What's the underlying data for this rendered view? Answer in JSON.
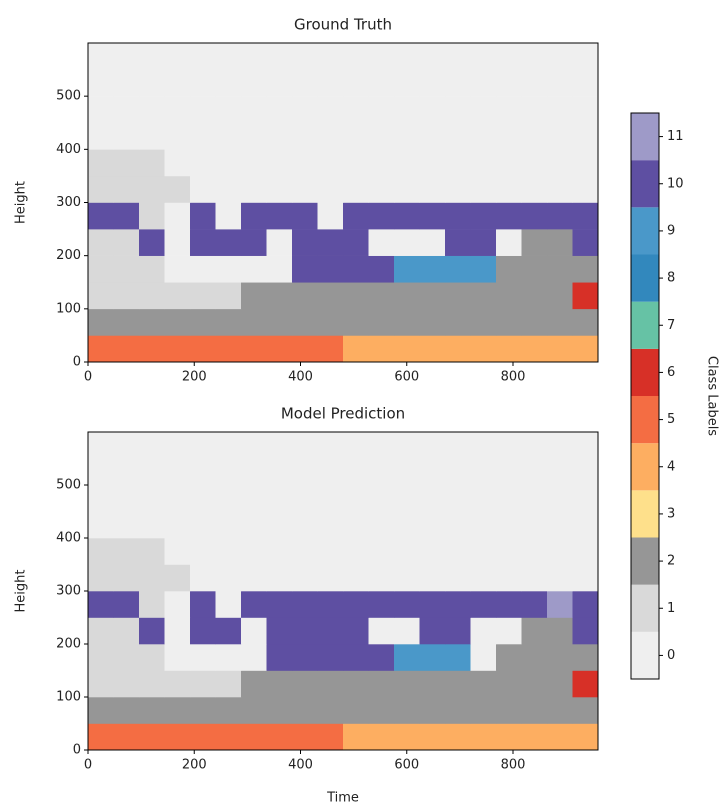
{
  "chart_data": [
    {
      "type": "heatmap",
      "title": "Ground Truth",
      "ylabel": "Height",
      "xlim": [
        0,
        960
      ],
      "ylim": [
        0,
        600
      ],
      "xticks": [
        0,
        200,
        400,
        600,
        800
      ],
      "yticks": [
        0,
        100,
        200,
        300,
        400,
        500
      ],
      "x_edges": [
        0,
        48,
        96,
        144,
        192,
        240,
        288,
        336,
        384,
        432,
        480,
        528,
        576,
        624,
        672,
        720,
        768,
        816,
        864,
        912,
        960
      ],
      "y_edges": [
        0,
        50,
        100,
        150,
        200,
        250,
        300,
        350,
        400,
        450,
        500,
        550,
        600
      ],
      "z": [
        [
          5,
          5,
          5,
          5,
          5,
          5,
          5,
          5,
          5,
          5,
          4,
          4,
          4,
          4,
          4,
          4,
          4,
          4,
          4,
          4
        ],
        [
          2,
          2,
          2,
          2,
          2,
          2,
          2,
          2,
          2,
          2,
          2,
          2,
          2,
          2,
          2,
          2,
          2,
          2,
          2,
          2
        ],
        [
          1,
          1,
          1,
          1,
          1,
          1,
          2,
          2,
          2,
          2,
          2,
          2,
          2,
          2,
          2,
          2,
          2,
          2,
          2,
          6
        ],
        [
          1,
          1,
          1,
          0,
          0,
          0,
          0,
          0,
          10,
          10,
          10,
          10,
          9,
          9,
          9,
          9,
          2,
          2,
          2,
          2
        ],
        [
          1,
          1,
          10,
          0,
          10,
          10,
          10,
          0,
          10,
          10,
          10,
          0,
          0,
          0,
          10,
          10,
          0,
          2,
          2,
          10
        ],
        [
          10,
          10,
          1,
          0,
          10,
          0,
          10,
          10,
          10,
          0,
          10,
          10,
          10,
          10,
          10,
          10,
          10,
          10,
          10,
          10
        ],
        [
          1,
          1,
          1,
          1,
          0,
          0,
          0,
          0,
          0,
          0,
          0,
          0,
          0,
          0,
          0,
          0,
          0,
          0,
          0,
          0
        ],
        [
          1,
          1,
          1,
          0,
          0,
          0,
          0,
          0,
          0,
          0,
          0,
          0,
          0,
          0,
          0,
          0,
          0,
          0,
          0,
          0
        ],
        [
          0,
          0,
          0,
          0,
          0,
          0,
          0,
          0,
          0,
          0,
          0,
          0,
          0,
          0,
          0,
          0,
          0,
          0,
          0,
          0
        ],
        [
          0,
          0,
          0,
          0,
          0,
          0,
          0,
          0,
          0,
          0,
          0,
          0,
          0,
          0,
          0,
          0,
          0,
          0,
          0,
          0
        ],
        [
          0,
          0,
          0,
          0,
          0,
          0,
          0,
          0,
          0,
          0,
          0,
          0,
          0,
          0,
          0,
          0,
          0,
          0,
          0,
          0
        ],
        [
          0,
          0,
          0,
          0,
          0,
          0,
          0,
          0,
          0,
          0,
          0,
          0,
          0,
          0,
          0,
          0,
          0,
          0,
          0,
          0
        ]
      ],
      "colorbar": {
        "label": "Class Labels",
        "classes": [
          0,
          1,
          2,
          3,
          4,
          5,
          6,
          7,
          8,
          9,
          10,
          11
        ],
        "ylim": [
          -0.5,
          11.5
        ],
        "colors": [
          "#efefef",
          "#d9d9d9",
          "#969696",
          "#fee08b",
          "#fdae61",
          "#f46d43",
          "#d73027",
          "#66c2a5",
          "#3288bd",
          "#4a98c9",
          "#5e4fa2",
          "#9e9ac8"
        ]
      }
    },
    {
      "type": "heatmap",
      "title": "Model Prediction",
      "ylabel": "Height",
      "xlabel": "Time",
      "xlim": [
        0,
        960
      ],
      "ylim": [
        0,
        600
      ],
      "xticks": [
        0,
        200,
        400,
        600,
        800
      ],
      "yticks": [
        0,
        100,
        200,
        300,
        400,
        500
      ],
      "x_edges": [
        0,
        48,
        96,
        144,
        192,
        240,
        288,
        336,
        384,
        432,
        480,
        528,
        576,
        624,
        672,
        720,
        768,
        816,
        864,
        912,
        960
      ],
      "y_edges": [
        0,
        50,
        100,
        150,
        200,
        250,
        300,
        350,
        400,
        450,
        500,
        550,
        600
      ],
      "z": [
        [
          5,
          5,
          5,
          5,
          5,
          5,
          5,
          5,
          5,
          5,
          4,
          4,
          4,
          4,
          4,
          4,
          4,
          4,
          4,
          4
        ],
        [
          2,
          2,
          2,
          2,
          2,
          2,
          2,
          2,
          2,
          2,
          2,
          2,
          2,
          2,
          2,
          2,
          2,
          2,
          2,
          2
        ],
        [
          1,
          1,
          1,
          1,
          1,
          1,
          2,
          2,
          2,
          2,
          2,
          2,
          2,
          2,
          2,
          2,
          2,
          2,
          2,
          6
        ],
        [
          1,
          1,
          1,
          0,
          0,
          0,
          0,
          10,
          10,
          10,
          10,
          10,
          9,
          9,
          9,
          0,
          2,
          2,
          2,
          2
        ],
        [
          1,
          1,
          10,
          0,
          10,
          10,
          0,
          10,
          10,
          10,
          10,
          0,
          0,
          10,
          10,
          0,
          0,
          2,
          2,
          10
        ],
        [
          10,
          10,
          1,
          0,
          10,
          0,
          10,
          10,
          10,
          10,
          10,
          10,
          10,
          10,
          10,
          10,
          10,
          10,
          11,
          10
        ],
        [
          1,
          1,
          1,
          1,
          0,
          0,
          0,
          0,
          0,
          0,
          0,
          0,
          0,
          0,
          0,
          0,
          0,
          0,
          0,
          0
        ],
        [
          1,
          1,
          1,
          0,
          0,
          0,
          0,
          0,
          0,
          0,
          0,
          0,
          0,
          0,
          0,
          0,
          0,
          0,
          0,
          0
        ],
        [
          0,
          0,
          0,
          0,
          0,
          0,
          0,
          0,
          0,
          0,
          0,
          0,
          0,
          0,
          0,
          0,
          0,
          0,
          0,
          0
        ],
        [
          0,
          0,
          0,
          0,
          0,
          0,
          0,
          0,
          0,
          0,
          0,
          0,
          0,
          0,
          0,
          0,
          0,
          0,
          0,
          0
        ],
        [
          0,
          0,
          0,
          0,
          0,
          0,
          0,
          0,
          0,
          0,
          0,
          0,
          0,
          0,
          0,
          0,
          0,
          0,
          0,
          0
        ],
        [
          0,
          0,
          0,
          0,
          0,
          0,
          0,
          0,
          0,
          0,
          0,
          0,
          0,
          0,
          0,
          0,
          0,
          0,
          0,
          0
        ]
      ]
    }
  ]
}
